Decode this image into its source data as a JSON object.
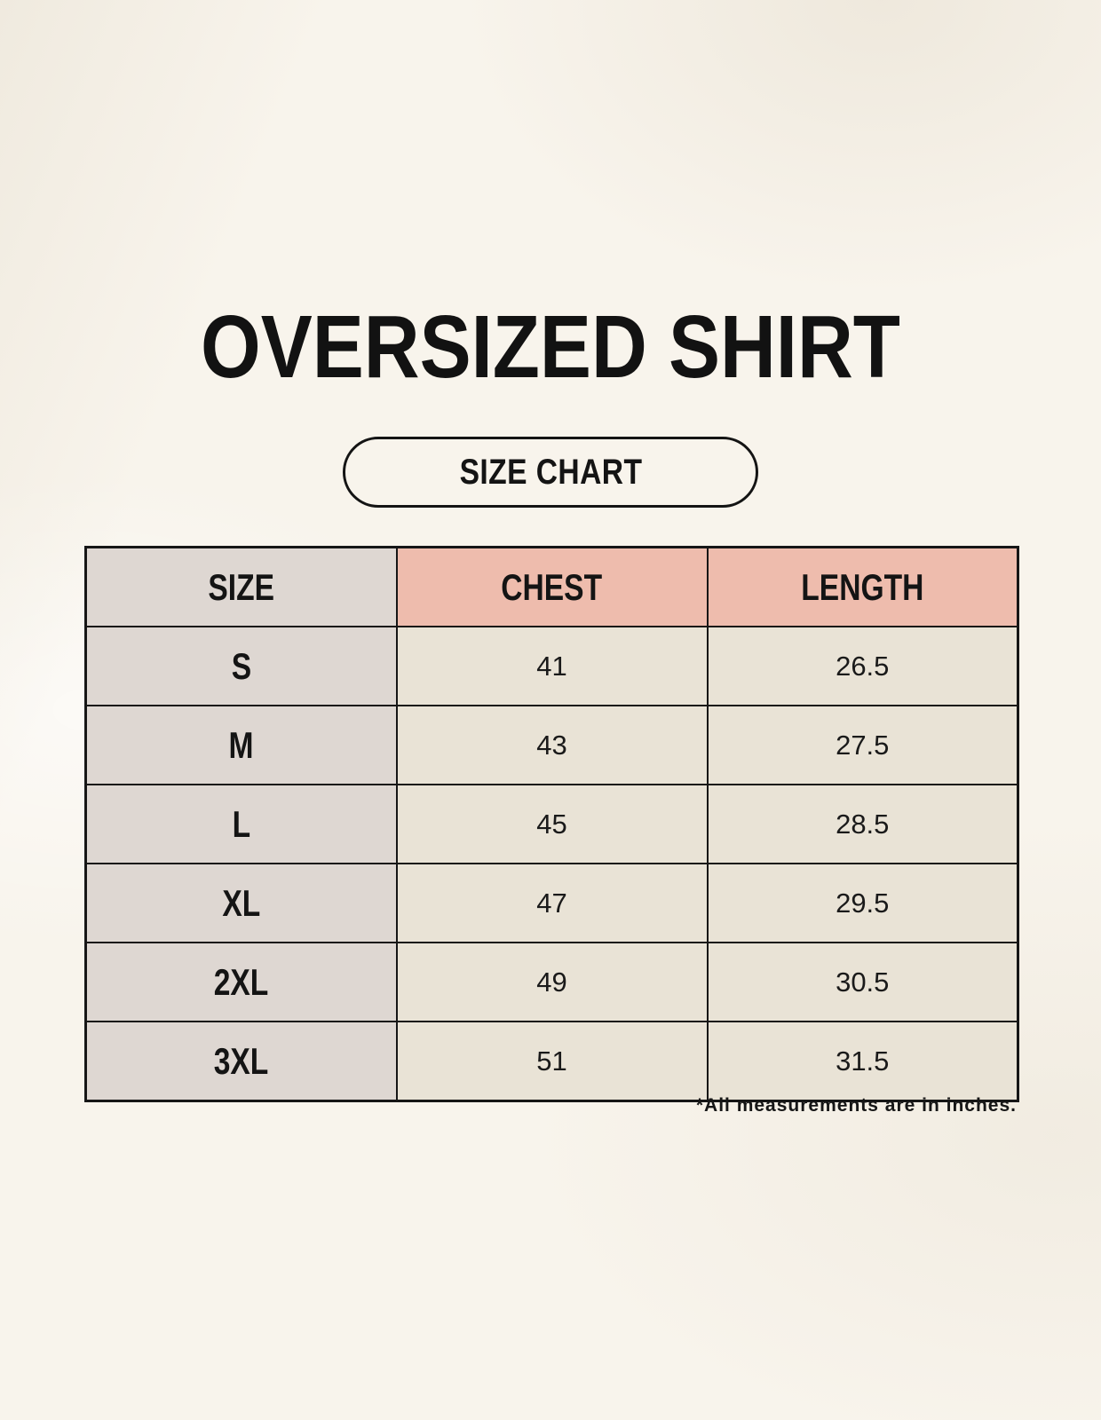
{
  "page": {
    "title": "OVERSIZED SHIRT",
    "size_chart_badge": "SIZE CHART",
    "footnote": "*All measurements are in inches."
  },
  "chart_data": {
    "type": "table",
    "title": "OVERSIZED SHIRT",
    "subtitle": "SIZE CHART",
    "units": "inches",
    "columns": [
      "SIZE",
      "CHEST",
      "LENGTH"
    ],
    "rows": [
      [
        "S",
        41,
        26.5
      ],
      [
        "M",
        43,
        27.5
      ],
      [
        "L",
        45,
        28.5
      ],
      [
        "XL",
        47,
        29.5
      ],
      [
        "2XL",
        49,
        30.5
      ],
      [
        "3XL",
        51,
        31.5
      ]
    ]
  },
  "colors": {
    "background": "#f8f4ec",
    "header_accent": "#eebcad",
    "size_column": "#ded7d2",
    "data_cell": "#e9e3d6",
    "border": "#161616",
    "text": "#141414"
  }
}
